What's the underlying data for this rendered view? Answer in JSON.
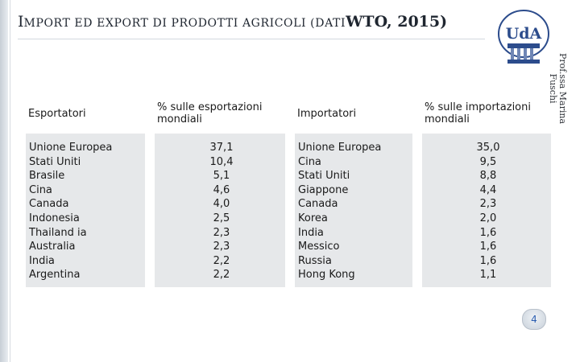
{
  "title": {
    "first_letter": "I",
    "rest": "MPORT ED EXPORT DI PRODOTTI AGRICOLI (DATI",
    "source": "WTO, 2015)"
  },
  "logo": {
    "text": "UdA"
  },
  "author": {
    "line1": "Prof.ssa Marina",
    "line2": "Fuschi"
  },
  "table": {
    "headers": {
      "exporters": "Esportatori",
      "export_share": "% sulle esportazioni mondiali",
      "importers": "Importatori",
      "import_share": "% sulle importazioni mondiali"
    },
    "exporters": [
      "Unione Europea",
      "Stati Uniti",
      "Brasile",
      "Cina",
      "Canada",
      "Indonesia",
      "Thailand  ia",
      "Australia",
      "India",
      "Argentina"
    ],
    "export_share": [
      "37,1",
      "10,4",
      "5,1",
      "4,6",
      "4,0",
      "2,5",
      "2,3",
      "2,3",
      "2,2",
      "2,2"
    ],
    "importers": [
      "Unione Europea",
      "Cina",
      "Stati Uniti",
      "Giappone",
      "Canada",
      "Korea",
      "India",
      "Messico",
      "Russia",
      "Hong Kong"
    ],
    "import_share": [
      "35,0",
      "9,5",
      "8,8",
      "4,4",
      "2,3",
      "2,0",
      "1,6",
      "1,6",
      "1,6",
      "1,1"
    ]
  },
  "page_number": "4",
  "colors": {
    "band": "#e6e8ea",
    "page_number": "#2a5db0",
    "logo_blue": "#2c4c8c"
  }
}
